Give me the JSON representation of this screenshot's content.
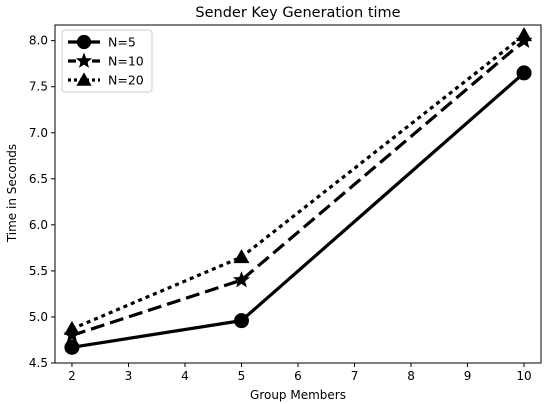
{
  "chart_data": {
    "type": "line",
    "title": "Sender Key Generation time",
    "xlabel": "Group Members",
    "ylabel": "Time in Seconds",
    "x": [
      2,
      5,
      10
    ],
    "xlim": [
      1.7,
      10.3
    ],
    "xticks": [
      2,
      3,
      4,
      5,
      6,
      7,
      8,
      9,
      10
    ],
    "ylim": [
      4.5,
      8.17
    ],
    "yticks": [
      "4.5",
      "5.0",
      "5.5",
      "6.0",
      "6.5",
      "7.0",
      "7.5",
      "8.0"
    ],
    "legend_position": "upper-left",
    "grid": false,
    "series": [
      {
        "name": "N=5",
        "values": [
          4.67,
          4.96,
          7.65
        ],
        "line_style": "solid",
        "marker": "circle",
        "color": "#000000"
      },
      {
        "name": "N=10",
        "values": [
          4.8,
          5.4,
          8.0
        ],
        "line_style": "dashed",
        "marker": "star",
        "color": "#000000"
      },
      {
        "name": "N=20",
        "values": [
          4.87,
          5.65,
          8.06
        ],
        "line_style": "dotted",
        "marker": "triangle",
        "color": "#000000"
      }
    ]
  }
}
